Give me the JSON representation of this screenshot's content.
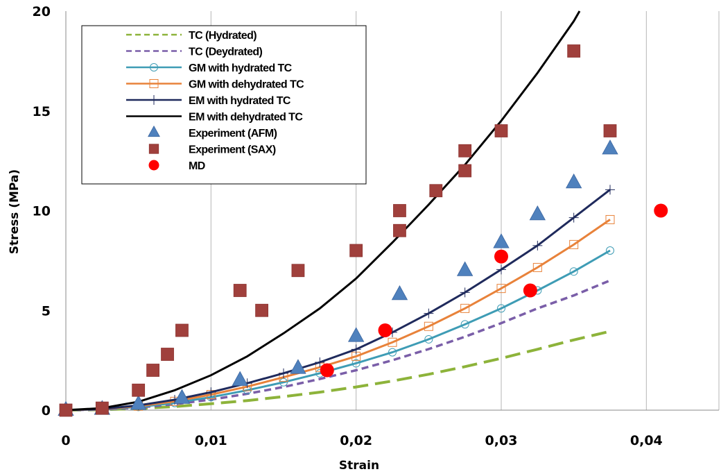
{
  "chart_data": {
    "type": "scatter",
    "xlabel": "Strain",
    "ylabel": "Stress (MPa)",
    "xlim": [
      0,
      0.045
    ],
    "ylim": [
      0,
      20
    ],
    "xticks": [
      0,
      0.01,
      0.02,
      0.03,
      0.04
    ],
    "xtick_labels": [
      "0",
      "0,01",
      "0,02",
      "0,03",
      "0,04"
    ],
    "yticks": [
      0,
      5,
      10,
      15,
      20
    ],
    "ytick_labels": [
      "0",
      "5",
      "10",
      "15",
      "20"
    ],
    "grid": "vertical",
    "legend_position": "top-left",
    "series": [
      {
        "name": "TC (Hydrated)",
        "style": "dashed-line",
        "color": "#8db33a",
        "x": [
          0,
          0.0025,
          0.005,
          0.0075,
          0.01,
          0.0125,
          0.015,
          0.0175,
          0.02,
          0.0225,
          0.025,
          0.0275,
          0.03,
          0.0325,
          0.035,
          0.0375
        ],
        "y": [
          0,
          0.02,
          0.08,
          0.18,
          0.32,
          0.48,
          0.68,
          0.9,
          1.16,
          1.46,
          1.8,
          2.18,
          2.6,
          3.05,
          3.52,
          3.95
        ]
      },
      {
        "name": "TC (Deydrated)",
        "style": "dashed-line",
        "color": "#7a5ea8",
        "x": [
          0,
          0.0025,
          0.005,
          0.0075,
          0.01,
          0.0125,
          0.015,
          0.0175,
          0.02,
          0.0225,
          0.025,
          0.0275,
          0.03,
          0.0325,
          0.035,
          0.0375
        ],
        "y": [
          0,
          0.03,
          0.13,
          0.3,
          0.53,
          0.82,
          1.16,
          1.56,
          2.0,
          2.5,
          3.06,
          3.68,
          4.36,
          5.1,
          5.75,
          6.5
        ]
      },
      {
        "name": "GM with hydrated TC",
        "style": "line-circle",
        "color": "#3e9cb5",
        "x": [
          0,
          0.0025,
          0.005,
          0.0075,
          0.01,
          0.0125,
          0.015,
          0.0175,
          0.02,
          0.0225,
          0.025,
          0.0275,
          0.03,
          0.0325,
          0.035,
          0.0375
        ],
        "y": [
          0,
          0.04,
          0.16,
          0.36,
          0.65,
          1.0,
          1.4,
          1.85,
          2.35,
          2.9,
          3.55,
          4.3,
          5.1,
          6.0,
          6.95,
          8.0
        ]
      },
      {
        "name": "GM with dehydrated TC",
        "style": "line-square",
        "color": "#e8823a",
        "x": [
          0,
          0.0025,
          0.005,
          0.0075,
          0.01,
          0.0125,
          0.015,
          0.0175,
          0.02,
          0.0225,
          0.025,
          0.0275,
          0.03,
          0.0325,
          0.035,
          0.0375
        ],
        "y": [
          0,
          0.05,
          0.2,
          0.44,
          0.78,
          1.18,
          1.65,
          2.15,
          2.7,
          3.4,
          4.2,
          5.1,
          6.1,
          7.15,
          8.3,
          9.55
        ]
      },
      {
        "name": "EM with hydrated TC",
        "style": "line-plus",
        "color": "#1f2a5c",
        "x": [
          0,
          0.0025,
          0.005,
          0.0075,
          0.01,
          0.0125,
          0.015,
          0.0175,
          0.02,
          0.0225,
          0.025,
          0.0275,
          0.03,
          0.0325,
          0.035,
          0.0375
        ],
        "y": [
          0,
          0.06,
          0.24,
          0.52,
          0.9,
          1.35,
          1.85,
          2.4,
          3.05,
          3.9,
          4.85,
          5.9,
          7.05,
          8.25,
          9.65,
          11.05
        ]
      },
      {
        "name": "EM with dehydrated TC",
        "style": "solid-line",
        "color": "#000000",
        "x": [
          0,
          0.0025,
          0.005,
          0.0075,
          0.01,
          0.0125,
          0.015,
          0.0175,
          0.02,
          0.0225,
          0.025,
          0.0275,
          0.03,
          0.0325,
          0.035,
          0.0354
        ],
        "y": [
          0,
          0.1,
          0.42,
          1.0,
          1.75,
          2.7,
          3.85,
          5.1,
          6.6,
          8.4,
          10.3,
          12.3,
          14.5,
          16.9,
          19.5,
          20.0
        ]
      },
      {
        "name": "Experiment (AFM)",
        "style": "marker-triangle",
        "color": "#4f81bd",
        "x": [
          0,
          0.0025,
          0.005,
          0.008,
          0.012,
          0.016,
          0.02,
          0.023,
          0.0275,
          0.03,
          0.0325,
          0.035,
          0.0375
        ],
        "y": [
          0,
          0.05,
          0.3,
          0.6,
          1.5,
          2.1,
          3.7,
          5.8,
          7.0,
          8.4,
          9.8,
          11.4,
          13.1
        ]
      },
      {
        "name": "Experiment (SAX)",
        "style": "marker-square",
        "color": "#a0403c",
        "x": [
          0,
          0.0025,
          0.005,
          0.006,
          0.007,
          0.008,
          0.012,
          0.0135,
          0.016,
          0.02,
          0.023,
          0.023,
          0.0255,
          0.0275,
          0.0275,
          0.03,
          0.035,
          0.0375
        ],
        "y": [
          0,
          0.1,
          1.0,
          2.0,
          2.8,
          4.0,
          6.0,
          5.0,
          7.0,
          8.0,
          9.0,
          10.0,
          11.0,
          12.0,
          13.0,
          14.0,
          18.0,
          14.0
        ]
      },
      {
        "name": "MD",
        "style": "marker-circle",
        "color": "#ff0000",
        "x": [
          0.018,
          0.022,
          0.03,
          0.032,
          0.041
        ],
        "y": [
          2.0,
          4.0,
          7.7,
          6.0,
          10.0
        ]
      }
    ]
  }
}
